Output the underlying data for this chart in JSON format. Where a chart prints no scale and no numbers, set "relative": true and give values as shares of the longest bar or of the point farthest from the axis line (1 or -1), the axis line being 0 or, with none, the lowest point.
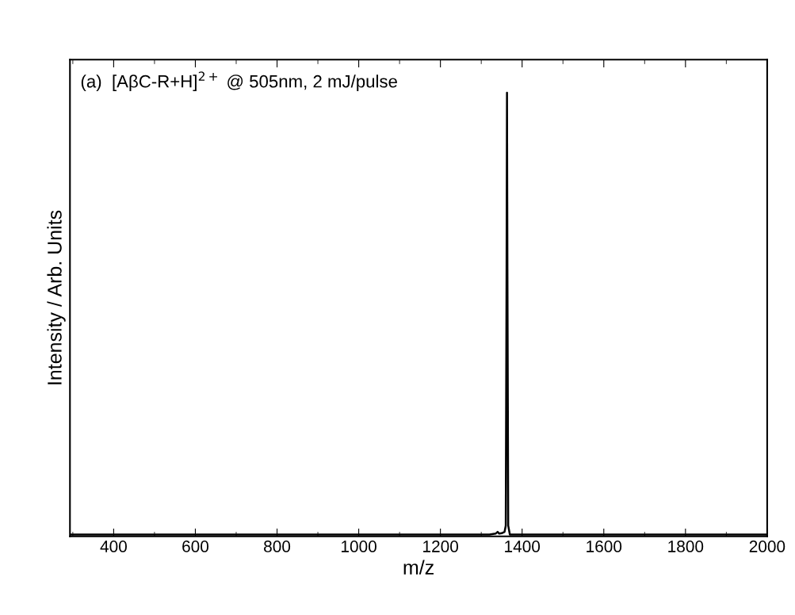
{
  "chart_data": {
    "type": "line",
    "relative": true,
    "title": "(a)  [AβC-R+H]$^{2+}$ @ 505nm, 2 mJ/pulse",
    "xlabel": "m/z",
    "ylabel": "Intensity / Arb. Units",
    "xlim": [
      293,
      2000
    ],
    "xticks": [
      400,
      600,
      800,
      1000,
      1200,
      1400,
      1600,
      1800,
      2000
    ],
    "series": [
      {
        "color": "#000000",
        "x": [
          293,
          1320,
          1335,
          1340,
          1344,
          1350,
          1357,
          1360,
          1362,
          1363,
          1364,
          1366,
          1370,
          2000
        ],
        "values": [
          0,
          0,
          0.002,
          0.006,
          0.002,
          0.003,
          0.006,
          0.02,
          0.6,
          1,
          0.6,
          0.02,
          0,
          0
        ]
      }
    ]
  }
}
